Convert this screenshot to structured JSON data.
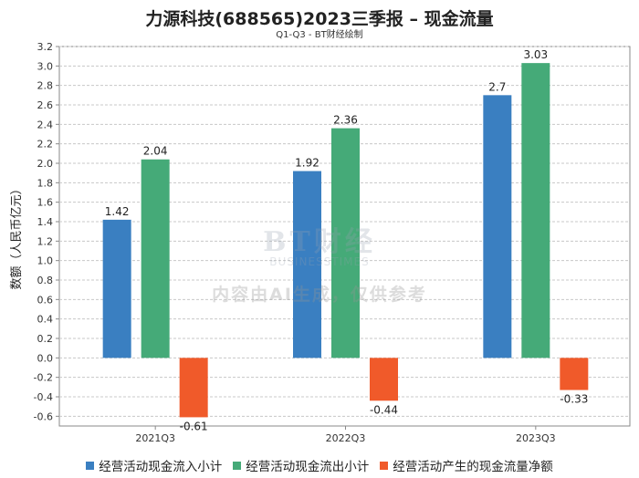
{
  "chart_data": {
    "type": "bar",
    "title": "力源科技(688565)2023三季报 – 现金流量",
    "subtitle": "Q1-Q3 - BT财经绘制",
    "xlabel": "",
    "ylabel": "数额（人民币亿元）",
    "ylim": [
      -0.7,
      3.2
    ],
    "yticks": [
      -0.6,
      -0.4,
      -0.2,
      0.0,
      0.2,
      0.4,
      0.6,
      0.8,
      1.0,
      1.2,
      1.4,
      1.6,
      1.8,
      2.0,
      2.2,
      2.4,
      2.6,
      2.8,
      3.0,
      3.2
    ],
    "categories": [
      "2021Q3",
      "2022Q3",
      "2023Q3"
    ],
    "series": [
      {
        "name": "经营活动现金流入小计",
        "color": "#3a7fc1",
        "values": [
          1.42,
          1.92,
          2.7
        ]
      },
      {
        "name": "经营活动现金流出小计",
        "color": "#45aa78",
        "values": [
          2.04,
          2.36,
          3.03
        ]
      },
      {
        "name": "经营活动产生的现金流量净额",
        "color": "#f05a2a",
        "values": [
          -0.61,
          -0.44,
          -0.33
        ]
      }
    ],
    "grid": true,
    "legend": "bottom"
  },
  "watermark": {
    "logo": "BT财经",
    "logo_sub": "BUSINESSTIMES",
    "text": "内容由AI生成，仅供参考"
  }
}
